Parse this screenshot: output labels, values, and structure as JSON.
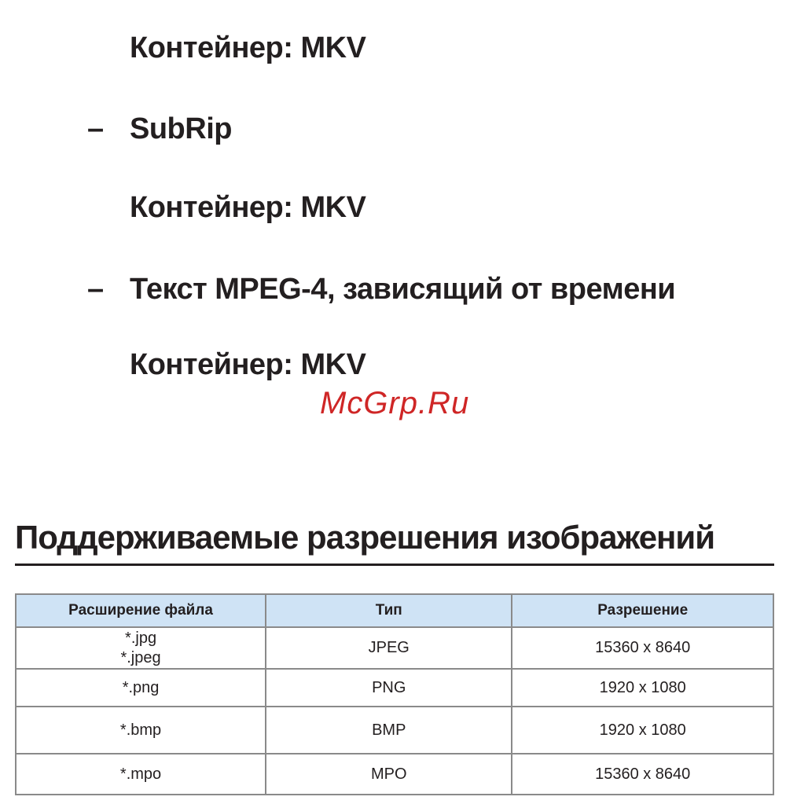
{
  "page": {
    "text_color": "#231f20",
    "watermark_color": "#cf2626",
    "table_header_bg": "#cfe3f5",
    "table_border_color": "#8a8a8a"
  },
  "content": {
    "lines": [
      {
        "type": "plain",
        "text": "Контейнер: MKV"
      },
      {
        "type": "bullet",
        "dash": "–",
        "text": "SubRip"
      },
      {
        "type": "plain",
        "text": "Контейнер: MKV"
      },
      {
        "type": "bullet",
        "dash": "–",
        "text": "Текст MPEG-4, зависящий от времени"
      },
      {
        "type": "plain",
        "text": "Контейнер: MKV"
      }
    ],
    "watermark": "McGrp.Ru",
    "section_heading": "Поддерживаемые разрешения изображений"
  },
  "table": {
    "headers": [
      "Расширение файла",
      "Тип",
      "Разрешение"
    ],
    "rows": [
      {
        "extensions": [
          "*.jpg",
          "*.jpeg"
        ],
        "type": "JPEG",
        "resolution": "15360 x 8640"
      },
      {
        "extensions": [
          "*.png"
        ],
        "type": "PNG",
        "resolution": "1920 x 1080"
      },
      {
        "extensions": [
          "*.bmp"
        ],
        "type": "BMP",
        "resolution": "1920 x 1080"
      },
      {
        "extensions": [
          "*.mpo"
        ],
        "type": "MPO",
        "resolution": "15360 x 8640"
      }
    ]
  }
}
